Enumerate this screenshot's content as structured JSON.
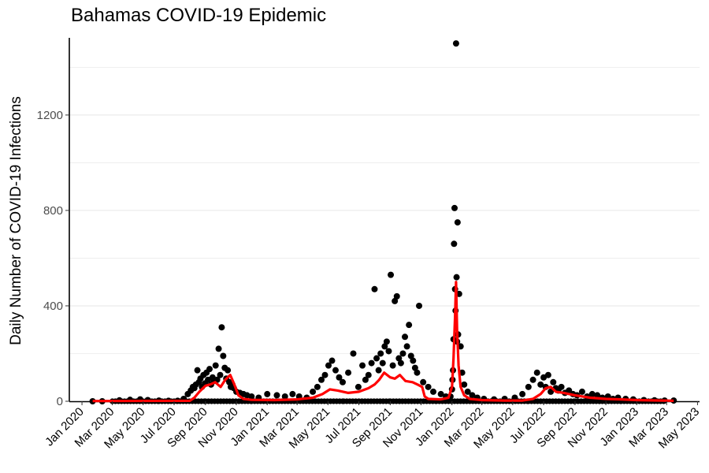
{
  "chart_data": {
    "type": "scatter",
    "title": "Bahamas COVID-19 Epidemic",
    "xlabel": "",
    "ylabel": "Daily Number of COVID-19 Infections",
    "xlim": [
      "2019-12-07",
      "2023-05-05"
    ],
    "ylim": [
      0,
      1550
    ],
    "y_ticks": [
      0,
      400,
      800,
      1200
    ],
    "x_ticks": [
      {
        "date": "2020-01-01",
        "label": "Jan 2020"
      },
      {
        "date": "2020-03-01",
        "label": "Mar 2020"
      },
      {
        "date": "2020-05-01",
        "label": "May 2020"
      },
      {
        "date": "2020-07-01",
        "label": "Jul 2020"
      },
      {
        "date": "2020-09-01",
        "label": "Sep 2020"
      },
      {
        "date": "2020-11-01",
        "label": "Nov 2020"
      },
      {
        "date": "2021-01-01",
        "label": "Jan 2021"
      },
      {
        "date": "2021-03-01",
        "label": "Mar 2021"
      },
      {
        "date": "2021-05-01",
        "label": "May 2021"
      },
      {
        "date": "2021-07-01",
        "label": "Jul 2021"
      },
      {
        "date": "2021-09-01",
        "label": "Sep 2021"
      },
      {
        "date": "2021-11-01",
        "label": "Nov 2021"
      },
      {
        "date": "2022-01-01",
        "label": "Jan 2022"
      },
      {
        "date": "2022-03-01",
        "label": "Mar 2022"
      },
      {
        "date": "2022-05-01",
        "label": "May 2022"
      },
      {
        "date": "2022-07-01",
        "label": "Jul 2022"
      },
      {
        "date": "2022-09-01",
        "label": "Sep 2022"
      },
      {
        "date": "2022-11-01",
        "label": "Nov 2022"
      },
      {
        "date": "2023-01-01",
        "label": "Jan 2023"
      },
      {
        "date": "2023-03-01",
        "label": "Mar 2023"
      },
      {
        "date": "2023-05-01",
        "label": "May 2023"
      }
    ],
    "grid": "horizontal",
    "legend": "none",
    "colors": {
      "points": "#000000",
      "smooth_line": "#ff0000",
      "grid": "#ebebeb"
    },
    "series": [
      {
        "kind": "points",
        "x": [
          "2020-01-22",
          "2020-02-10",
          "2020-03-15",
          "2020-04-05",
          "2020-04-25",
          "2020-05-10",
          "2020-06-01",
          "2020-06-20",
          "2020-07-08",
          "2020-07-20",
          "2020-07-28",
          "2020-08-03",
          "2020-08-07",
          "2020-08-10",
          "2020-08-13",
          "2020-08-16",
          "2020-08-19",
          "2020-08-22",
          "2020-08-25",
          "2020-08-28",
          "2020-08-31",
          "2020-09-03",
          "2020-09-06",
          "2020-09-09",
          "2020-09-12",
          "2020-09-15",
          "2020-09-18",
          "2020-09-21",
          "2020-09-24",
          "2020-09-27",
          "2020-09-30",
          "2020-10-03",
          "2020-10-06",
          "2020-10-09",
          "2020-10-12",
          "2020-10-15",
          "2020-10-18",
          "2020-10-21",
          "2020-10-24",
          "2020-10-27",
          "2020-11-01",
          "2020-11-08",
          "2020-11-15",
          "2020-11-22",
          "2020-12-01",
          "2020-12-15",
          "2021-01-01",
          "2021-01-20",
          "2021-02-05",
          "2021-02-20",
          "2021-03-05",
          "2021-03-20",
          "2021-04-01",
          "2021-04-10",
          "2021-04-18",
          "2021-04-25",
          "2021-05-02",
          "2021-05-09",
          "2021-05-16",
          "2021-05-23",
          "2021-05-30",
          "2021-06-10",
          "2021-06-20",
          "2021-06-30",
          "2021-07-08",
          "2021-07-14",
          "2021-07-20",
          "2021-07-26",
          "2021-08-01",
          "2021-08-05",
          "2021-08-09",
          "2021-08-13",
          "2021-08-17",
          "2021-08-21",
          "2021-08-25",
          "2021-08-29",
          "2021-09-02",
          "2021-09-06",
          "2021-09-10",
          "2021-09-14",
          "2021-09-18",
          "2021-09-22",
          "2021-09-26",
          "2021-09-30",
          "2021-10-04",
          "2021-10-08",
          "2021-10-12",
          "2021-10-16",
          "2021-10-20",
          "2021-10-24",
          "2021-10-28",
          "2021-11-05",
          "2021-11-15",
          "2021-11-25",
          "2021-12-10",
          "2021-12-20",
          "2021-12-26",
          "2021-12-29",
          "2022-01-01",
          "2022-01-02",
          "2022-01-03",
          "2022-01-04",
          "2022-01-05",
          "2022-01-06",
          "2022-01-07",
          "2022-01-08",
          "2022-01-09",
          "2022-01-10",
          "2022-01-11",
          "2022-01-12",
          "2022-01-13",
          "2022-01-15",
          "2022-01-18",
          "2022-01-21",
          "2022-01-25",
          "2022-02-01",
          "2022-02-10",
          "2022-02-20",
          "2022-03-05",
          "2022-03-25",
          "2022-04-15",
          "2022-05-05",
          "2022-05-20",
          "2022-06-01",
          "2022-06-10",
          "2022-06-18",
          "2022-06-25",
          "2022-07-01",
          "2022-07-05",
          "2022-07-10",
          "2022-07-15",
          "2022-07-20",
          "2022-07-25",
          "2022-07-30",
          "2022-08-05",
          "2022-08-12",
          "2022-08-20",
          "2022-08-28",
          "2022-09-05",
          "2022-09-15",
          "2022-09-25",
          "2022-10-05",
          "2022-10-15",
          "2022-10-25",
          "2022-11-05",
          "2022-11-15",
          "2022-11-25",
          "2022-12-10",
          "2022-12-25",
          "2023-01-15",
          "2023-02-05",
          "2023-02-25",
          "2023-03-15"
        ],
        "y": [
          0,
          0,
          4,
          6,
          8,
          5,
          3,
          2,
          2,
          10,
          30,
          45,
          60,
          55,
          70,
          130,
          80,
          95,
          60,
          110,
          75,
          120,
          90,
          135,
          70,
          100,
          85,
          150,
          90,
          220,
          110,
          310,
          190,
          140,
          95,
          130,
          80,
          60,
          70,
          55,
          40,
          35,
          30,
          25,
          20,
          15,
          30,
          25,
          20,
          30,
          20,
          15,
          40,
          60,
          90,
          110,
          150,
          170,
          130,
          100,
          80,
          120,
          200,
          60,
          150,
          90,
          110,
          160,
          470,
          180,
          130,
          200,
          160,
          230,
          250,
          210,
          530,
          150,
          420,
          440,
          180,
          160,
          200,
          270,
          230,
          320,
          190,
          170,
          140,
          120,
          400,
          80,
          60,
          40,
          30,
          20,
          15,
          20,
          50,
          90,
          130,
          260,
          660,
          810,
          470,
          380,
          1500,
          520,
          250,
          750,
          280,
          450,
          230,
          120,
          70,
          40,
          25,
          15,
          10,
          8,
          10,
          15,
          30,
          60,
          90,
          120,
          70,
          100,
          60,
          110,
          40,
          80,
          55,
          45,
          60,
          35,
          45,
          30,
          25,
          40,
          20,
          30,
          25,
          15,
          20,
          10,
          15,
          10,
          8,
          5,
          4,
          3,
          3
        ],
        "zeros": [
          "2020-03-01",
          "2020-06-01",
          "2020-09-01",
          "2020-12-01",
          "2021-03-01",
          "2021-06-01",
          "2021-09-01",
          "2021-12-01",
          "2022-03-01",
          "2022-06-01",
          "2022-09-01",
          "2022-12-01",
          "2023-03-01"
        ]
      },
      {
        "kind": "smooth_line",
        "x": [
          "2020-01-22",
          "2020-08-01",
          "2020-08-10",
          "2020-08-20",
          "2020-09-01",
          "2020-09-10",
          "2020-09-20",
          "2020-10-01",
          "2020-10-10",
          "2020-10-20",
          "2020-10-28",
          "2020-11-05",
          "2020-11-15",
          "2020-12-01",
          "2021-01-15",
          "2021-03-01",
          "2021-04-01",
          "2021-04-20",
          "2021-05-05",
          "2021-05-20",
          "2021-06-10",
          "2021-07-01",
          "2021-07-20",
          "2021-08-01",
          "2021-08-10",
          "2021-08-20",
          "2021-09-01",
          "2021-09-10",
          "2021-09-20",
          "2021-10-01",
          "2021-10-15",
          "2021-10-25",
          "2021-11-03",
          "2021-11-08",
          "2021-11-15",
          "2021-12-10",
          "2021-12-25",
          "2022-01-01",
          "2022-01-04",
          "2022-01-07",
          "2022-01-09",
          "2022-01-11",
          "2022-01-14",
          "2022-01-18",
          "2022-01-25",
          "2022-02-05",
          "2022-03-01",
          "2022-04-15",
          "2022-05-20",
          "2022-06-10",
          "2022-06-25",
          "2022-07-05",
          "2022-07-15",
          "2022-07-25",
          "2022-08-10",
          "2022-09-01",
          "2022-10-01",
          "2022-11-01",
          "2022-12-01",
          "2023-01-01",
          "2023-03-15"
        ],
        "y": [
          1,
          2,
          15,
          40,
          65,
          70,
          80,
          60,
          90,
          110,
          70,
          25,
          10,
          6,
          5,
          8,
          15,
          30,
          50,
          45,
          35,
          40,
          55,
          70,
          90,
          120,
          100,
          95,
          110,
          85,
          80,
          70,
          60,
          20,
          10,
          8,
          15,
          60,
          180,
          350,
          500,
          300,
          150,
          60,
          25,
          10,
          5,
          3,
          3,
          10,
          30,
          55,
          60,
          40,
          35,
          25,
          15,
          10,
          8,
          5,
          2
        ]
      }
    ]
  }
}
